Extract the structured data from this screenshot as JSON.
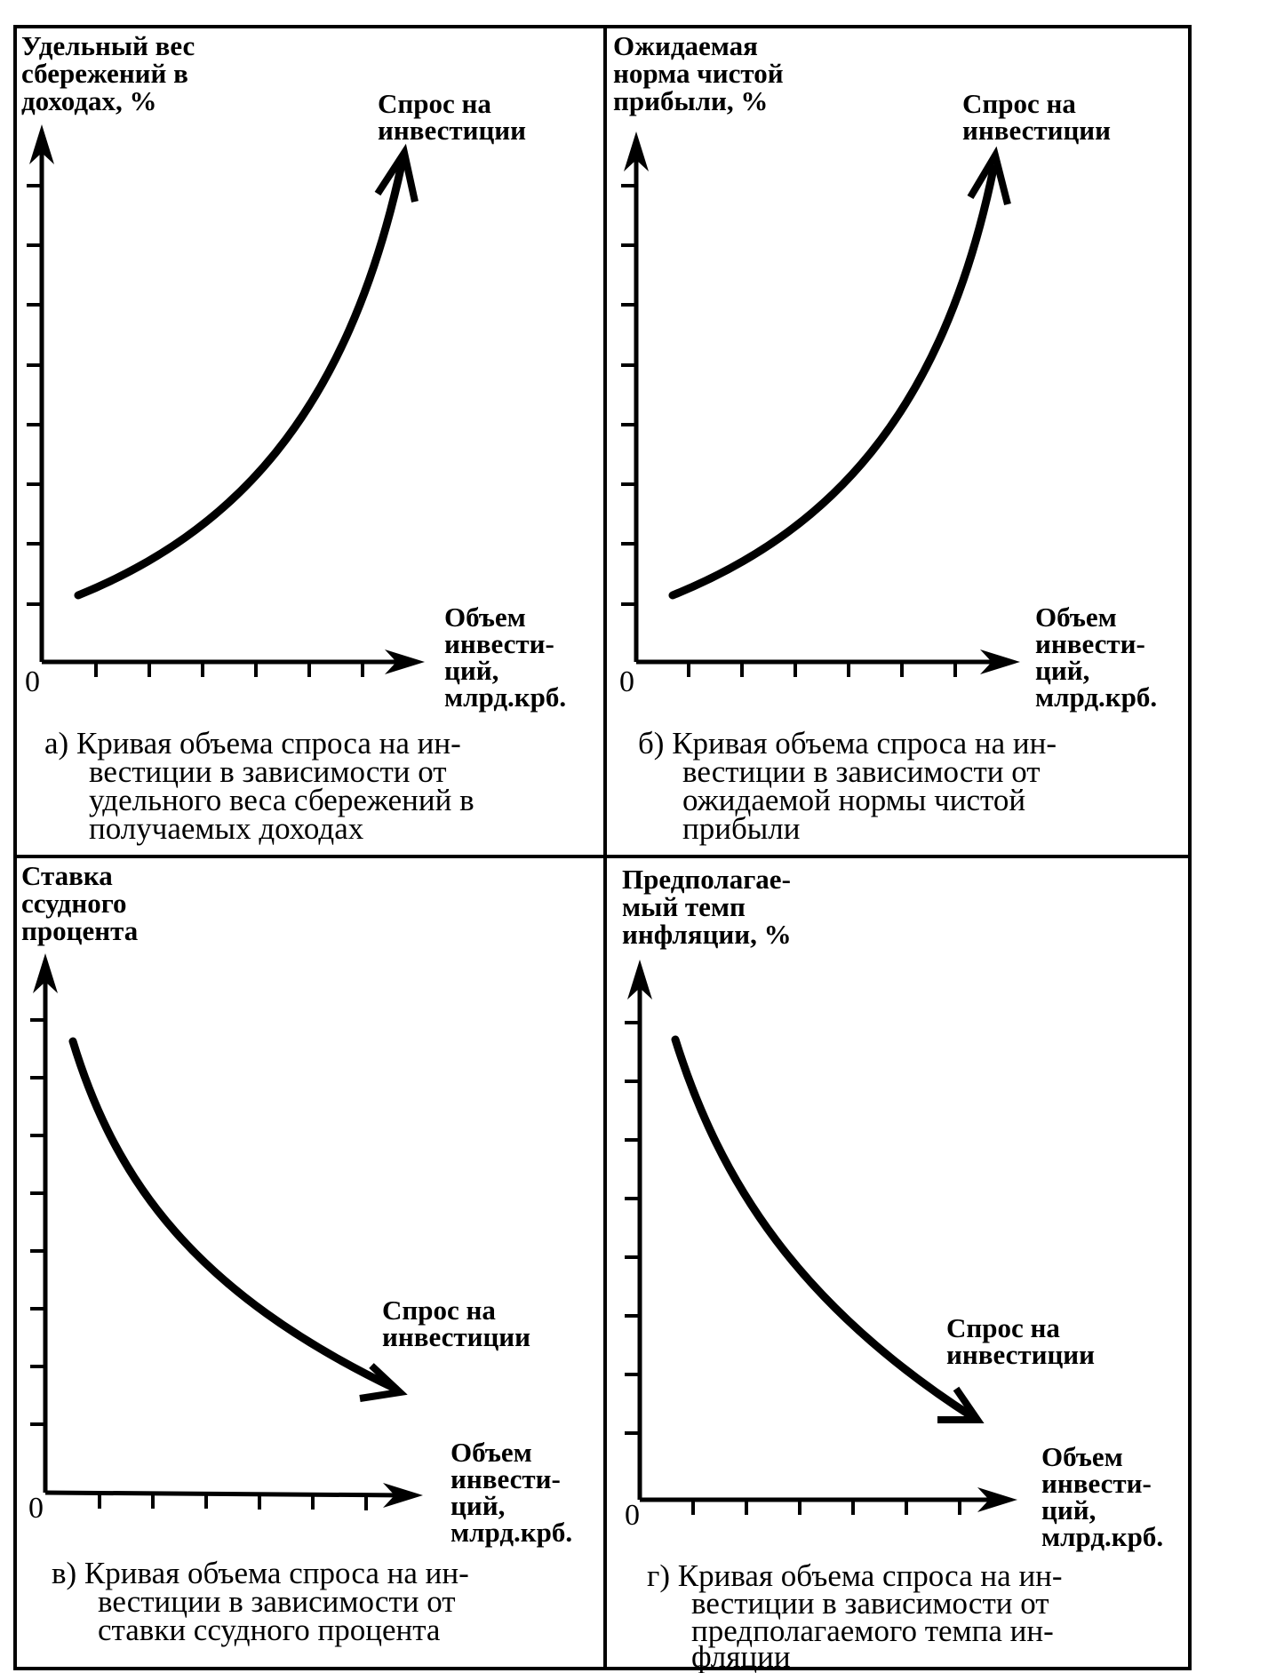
{
  "panels": [
    {
      "id": "a",
      "y_axis_label": [
        "Удельный вес",
        "сбережений в",
        "доходах, %"
      ],
      "curve_label": [
        "Спрос на",
        "инвестиции"
      ],
      "x_axis_label": [
        "Объем",
        "инвести-",
        "ций,",
        "млрд.крб."
      ],
      "origin_label": "0",
      "caption": [
        "а) Кривая объема спроса на ин-",
        "вестиции в зависимости от",
        "удельного веса сбережений в",
        "получаемых доходах"
      ]
    },
    {
      "id": "b",
      "y_axis_label": [
        "Ожидаемая",
        "норма чистой",
        "прибыли, %"
      ],
      "curve_label": [
        "Спрос на",
        "инвестиции"
      ],
      "x_axis_label": [
        "Объем",
        "инвести-",
        "ций,",
        "млрд.крб."
      ],
      "origin_label": "0",
      "caption": [
        "б) Кривая объема спроса на ин-",
        "вестиции в зависимости от",
        "ожидаемой нормы чистой",
        "прибыли"
      ]
    },
    {
      "id": "c",
      "y_axis_label": [
        "Ставка",
        "ссудного",
        "процента"
      ],
      "curve_label": [
        "Спрос на",
        "инвестиции"
      ],
      "x_axis_label": [
        "Объем",
        "инвести-",
        "ций,",
        "млрд.крб."
      ],
      "origin_label": "0",
      "caption": [
        "в) Кривая объема спроса на ин-",
        "вестиции в зависимости от",
        "ставки ссудного процента"
      ]
    },
    {
      "id": "d",
      "y_axis_label": [
        "Предполагае-",
        "мый темп",
        "инфляции, %"
      ],
      "curve_label": [
        "Спрос на",
        "инвестиции"
      ],
      "x_axis_label": [
        "Объем",
        "инвести-",
        "ций,",
        "млрд.крб."
      ],
      "origin_label": "0",
      "caption": [
        "г) Кривая объема спроса на ин-",
        "вестиции в зависимости от",
        "предполагаемого темпа ин-",
        "фляции"
      ]
    }
  ]
}
